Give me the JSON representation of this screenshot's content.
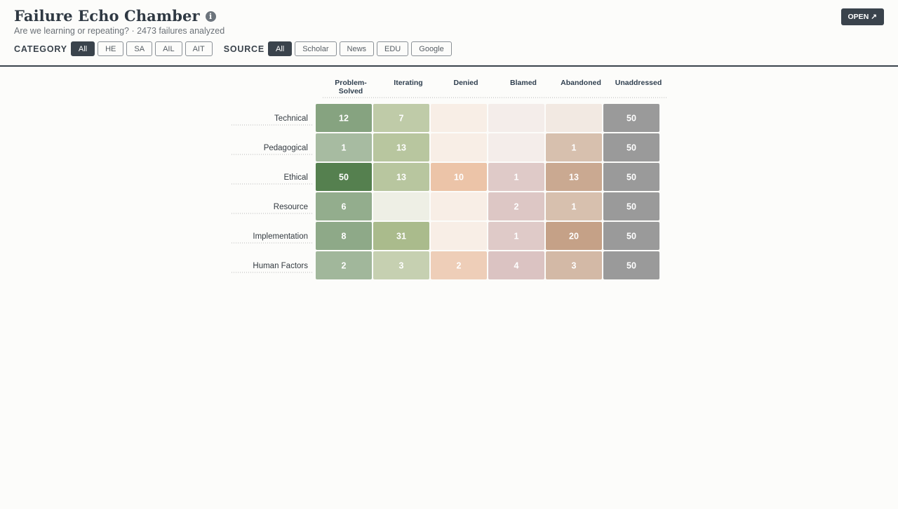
{
  "header": {
    "title": "Failure Echo Chamber",
    "info_icon": "i",
    "subtitle": "Are we learning or repeating? · 2473 failures analyzed",
    "open_button": "OPEN ↗"
  },
  "filters": {
    "category_label": "CATEGORY",
    "category_options": [
      "All",
      "HE",
      "SA",
      "AIL",
      "AIT"
    ],
    "category_selected": "All",
    "source_label": "SOURCE",
    "source_options": [
      "All",
      "Scholar",
      "News",
      "EDU",
      "Google"
    ],
    "source_selected": "All"
  },
  "chart_data": {
    "type": "heatmap",
    "columns": [
      {
        "label_lines": [
          "Problem-",
          "Solved"
        ],
        "color": "#55804f"
      },
      {
        "label_lines": [
          "Iterating"
        ],
        "color": "#9fb37e"
      },
      {
        "label_lines": [
          "Denied"
        ],
        "color": "#e8ad86"
      },
      {
        "label_lines": [
          "Blamed"
        ],
        "color": "#c8a0a0"
      },
      {
        "label_lines": [
          "Abandoned"
        ],
        "color": "#b88a6a"
      },
      {
        "label_lines": [
          "Unaddressed"
        ],
        "color": "#9a9a9a"
      }
    ],
    "rows": [
      "Technical",
      "Pedagogical",
      "Ethical",
      "Resource",
      "Implementation",
      "Human Factors"
    ],
    "values": [
      [
        12,
        7,
        null,
        null,
        null,
        50
      ],
      [
        1,
        13,
        null,
        null,
        1,
        50
      ],
      [
        50,
        13,
        10,
        1,
        13,
        50
      ],
      [
        6,
        null,
        null,
        2,
        1,
        50
      ],
      [
        8,
        31,
        null,
        1,
        20,
        50
      ],
      [
        2,
        3,
        2,
        4,
        3,
        50
      ]
    ],
    "max": 50,
    "empty_color": "#f1f0ec"
  }
}
